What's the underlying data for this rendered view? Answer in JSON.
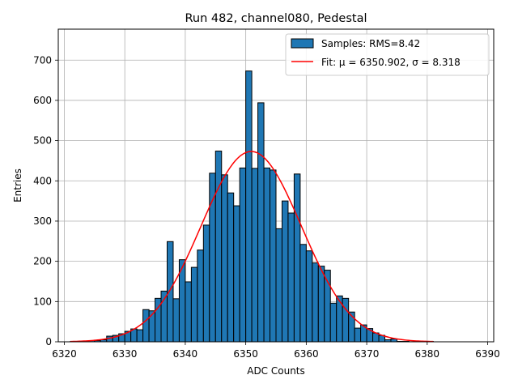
{
  "chart_data": {
    "type": "bar",
    "title": "Run 482, channel080, Pedestal",
    "xlabel": "ADC Counts",
    "ylabel": "Entries",
    "xlim": [
      6319,
      6391
    ],
    "ylim": [
      0,
      777
    ],
    "xticks": [
      6320,
      6330,
      6340,
      6350,
      6360,
      6370,
      6380,
      6390
    ],
    "yticks": [
      0,
      100,
      200,
      300,
      400,
      500,
      600,
      700
    ],
    "grid": true,
    "legend_position": "top-right",
    "bin_width": 1,
    "histogram": {
      "name": "Samples: RMS=8.42",
      "color": "#1f77b4",
      "bin_left_edges": [
        6321,
        6322,
        6323,
        6324,
        6325,
        6326,
        6327,
        6328,
        6329,
        6330,
        6331,
        6332,
        6333,
        6334,
        6335,
        6336,
        6337,
        6338,
        6339,
        6340,
        6341,
        6342,
        6343,
        6344,
        6345,
        6346,
        6347,
        6348,
        6349,
        6350,
        6351,
        6352,
        6353,
        6354,
        6355,
        6356,
        6357,
        6358,
        6359,
        6360,
        6361,
        6362,
        6363,
        6364,
        6365,
        6366,
        6367,
        6368,
        6369,
        6370,
        6371,
        6372,
        6373,
        6374,
        6375,
        6376,
        6377,
        6378,
        6379,
        6380
      ],
      "counts": [
        1,
        1,
        2,
        3,
        3,
        5,
        14,
        16,
        20,
        26,
        32,
        30,
        80,
        77,
        108,
        126,
        249,
        107,
        204,
        149,
        185,
        228,
        290,
        419,
        474,
        415,
        370,
        338,
        432,
        673,
        431,
        594,
        432,
        427,
        281,
        350,
        320,
        417,
        242,
        226,
        196,
        188,
        178,
        96,
        114,
        108,
        74,
        34,
        42,
        33,
        22,
        16,
        5,
        7,
        1,
        1,
        0,
        0,
        0,
        1
      ]
    },
    "fit": {
      "name": "Fit: μ = 6350.902, σ = 8.318",
      "color": "#ff0000",
      "mu": 6350.902,
      "sigma": 8.318,
      "amplitude": 473,
      "x_range": [
        6321,
        6381
      ]
    }
  }
}
